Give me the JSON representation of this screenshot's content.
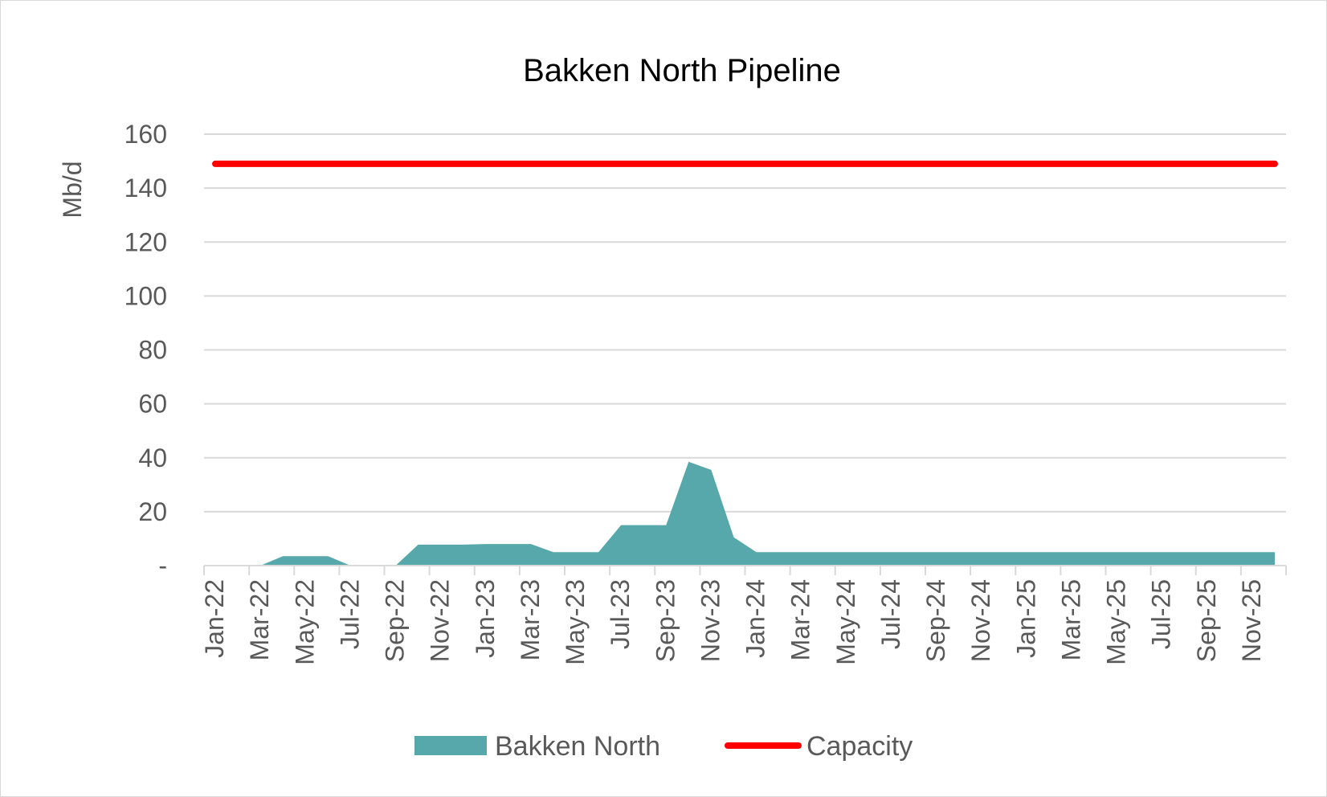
{
  "chart_data": {
    "type": "area",
    "title": "Bakken North Pipeline",
    "xlabel": "",
    "ylabel": "Mb/d",
    "ylim": [
      0,
      160
    ],
    "y_ticks": [
      {
        "value": 0,
        "label": "-"
      },
      {
        "value": 20,
        "label": "20"
      },
      {
        "value": 40,
        "label": "40"
      },
      {
        "value": 60,
        "label": "60"
      },
      {
        "value": 80,
        "label": "80"
      },
      {
        "value": 100,
        "label": "100"
      },
      {
        "value": 120,
        "label": "120"
      },
      {
        "value": 140,
        "label": "140"
      },
      {
        "value": 160,
        "label": "160"
      }
    ],
    "grid": true,
    "legend_position": "bottom",
    "x": [
      "Jan-22",
      "Feb-22",
      "Mar-22",
      "Apr-22",
      "May-22",
      "Jun-22",
      "Jul-22",
      "Aug-22",
      "Sep-22",
      "Oct-22",
      "Nov-22",
      "Dec-22",
      "Jan-23",
      "Feb-23",
      "Mar-23",
      "Apr-23",
      "May-23",
      "Jun-23",
      "Jul-23",
      "Aug-23",
      "Sep-23",
      "Oct-23",
      "Nov-23",
      "Dec-23",
      "Jan-24",
      "Feb-24",
      "Mar-24",
      "Apr-24",
      "May-24",
      "Jun-24",
      "Jul-24",
      "Aug-24",
      "Sep-24",
      "Oct-24",
      "Nov-24",
      "Dec-24",
      "Jan-25",
      "Feb-25",
      "Mar-25",
      "Apr-25",
      "May-25",
      "Jun-25",
      "Jul-25",
      "Aug-25",
      "Sep-25",
      "Oct-25",
      "Nov-25",
      "Dec-25"
    ],
    "x_tick_labels": [
      "Jan-22",
      "Mar-22",
      "May-22",
      "Jul-22",
      "Sep-22",
      "Nov-22",
      "Jan-23",
      "Mar-23",
      "May-23",
      "Jul-23",
      "Sep-23",
      "Nov-23",
      "Jan-24",
      "Mar-24",
      "May-24",
      "Jul-24",
      "Sep-24",
      "Nov-24",
      "Jan-25",
      "Mar-25",
      "May-25",
      "Jul-25",
      "Sep-25",
      "Nov-25"
    ],
    "series": [
      {
        "name": "Bakken North",
        "type": "area",
        "color": "#56a8ab",
        "values": [
          0,
          0,
          0,
          3.5,
          3.5,
          3.5,
          0,
          0,
          0,
          7.8,
          7.8,
          7.8,
          8,
          8,
          8,
          5,
          5,
          5,
          15,
          15,
          15,
          38.5,
          35.5,
          10.5,
          5,
          5,
          5,
          5,
          5,
          5,
          5,
          5,
          5,
          5,
          5,
          5,
          5,
          5,
          5,
          5,
          5,
          5,
          5,
          5,
          5,
          5,
          5,
          5
        ]
      },
      {
        "name": "Capacity",
        "type": "line",
        "color": "#ff0000",
        "values": [
          149,
          149,
          149,
          149,
          149,
          149,
          149,
          149,
          149,
          149,
          149,
          149,
          149,
          149,
          149,
          149,
          149,
          149,
          149,
          149,
          149,
          149,
          149,
          149,
          149,
          149,
          149,
          149,
          149,
          149,
          149,
          149,
          149,
          149,
          149,
          149,
          149,
          149,
          149,
          149,
          149,
          149,
          149,
          149,
          149,
          149,
          149,
          149
        ]
      }
    ]
  }
}
